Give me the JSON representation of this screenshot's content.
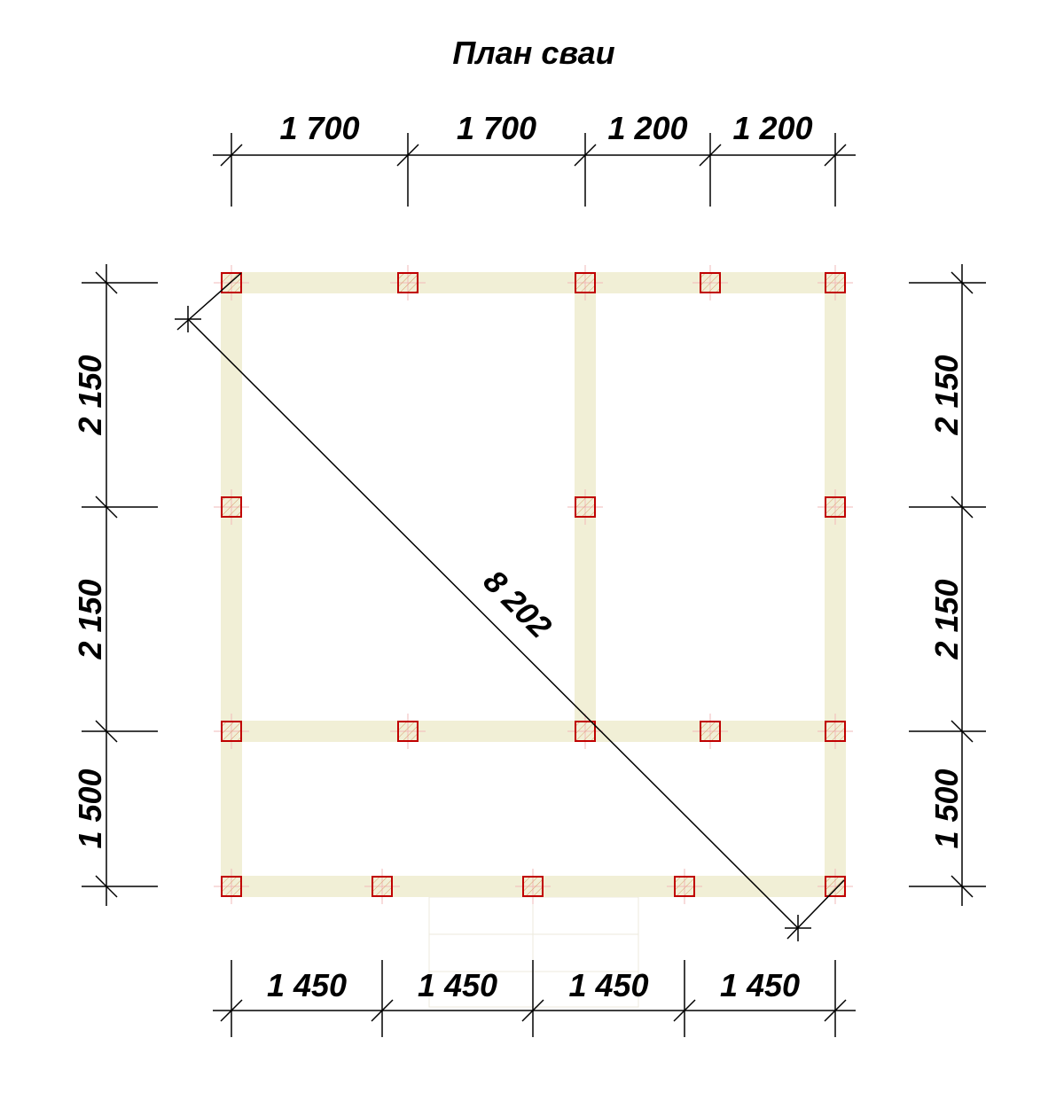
{
  "title": "План сваи",
  "dimensions": {
    "top": [
      "1 700",
      "1 700",
      "1 200",
      "1 200"
    ],
    "bottom": [
      "1 450",
      "1 450",
      "1 450",
      "1 450"
    ],
    "left": [
      "2 150",
      "2 150",
      "1 500"
    ],
    "right": [
      "2 150",
      "2 150",
      "1 500"
    ],
    "diagonal": "8 202"
  }
}
